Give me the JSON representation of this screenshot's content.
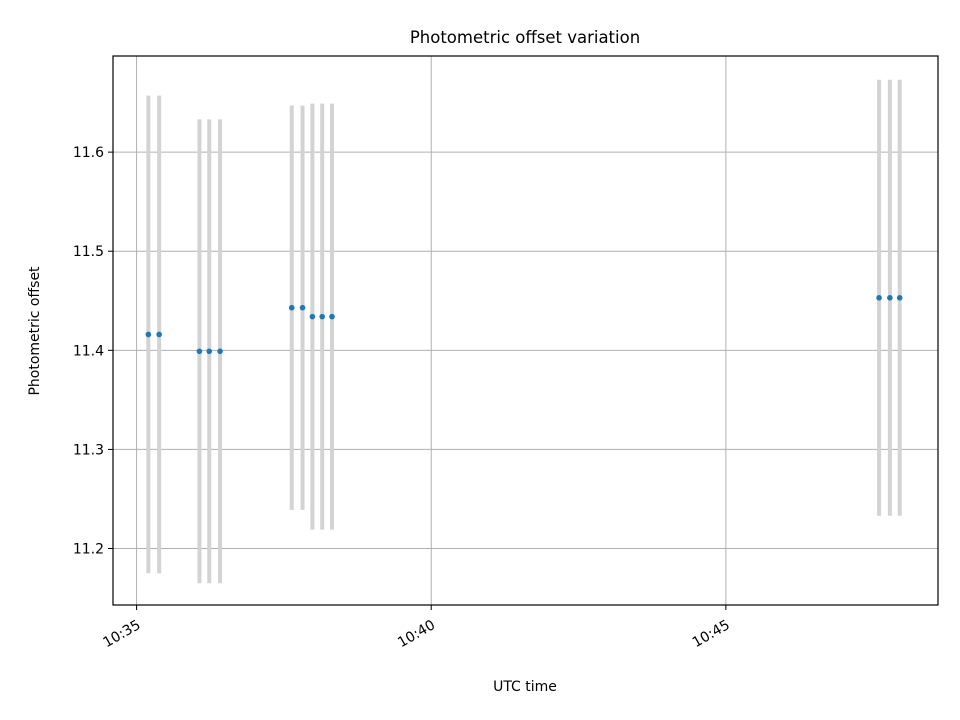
{
  "chart_data": {
    "type": "scatter",
    "title": "Photometric offset variation",
    "xlabel": "UTC time",
    "ylabel": "Photometric offset",
    "xlim": [
      "10:34:36",
      "10:48:36"
    ],
    "ylim": [
      11.143,
      11.697
    ],
    "xticks": [
      "10:35",
      "10:40",
      "10:45"
    ],
    "yticks": [
      "11.2",
      "11.3",
      "11.4",
      "11.5",
      "11.6"
    ],
    "grid": true,
    "colors": {
      "points": "#1f77b4",
      "errorbars": "#d3d3d3",
      "grid": "#b0b0b0"
    },
    "points": [
      {
        "x": "10:35:12",
        "y": 11.416,
        "err": 0.241
      },
      {
        "x": "10:35:23",
        "y": 11.416,
        "err": 0.241
      },
      {
        "x": "10:36:04",
        "y": 11.399,
        "err": 0.234
      },
      {
        "x": "10:36:14",
        "y": 11.399,
        "err": 0.234
      },
      {
        "x": "10:36:25",
        "y": 11.399,
        "err": 0.234
      },
      {
        "x": "10:37:38",
        "y": 11.443,
        "err": 0.204
      },
      {
        "x": "10:37:49",
        "y": 11.443,
        "err": 0.204
      },
      {
        "x": "10:37:59",
        "y": 11.434,
        "err": 0.215
      },
      {
        "x": "10:38:09",
        "y": 11.434,
        "err": 0.215
      },
      {
        "x": "10:38:19",
        "y": 11.434,
        "err": 0.215
      },
      {
        "x": "10:47:36",
        "y": 11.453,
        "err": 0.22
      },
      {
        "x": "10:47:47",
        "y": 11.453,
        "err": 0.22
      },
      {
        "x": "10:47:57",
        "y": 11.453,
        "err": 0.22
      }
    ]
  }
}
